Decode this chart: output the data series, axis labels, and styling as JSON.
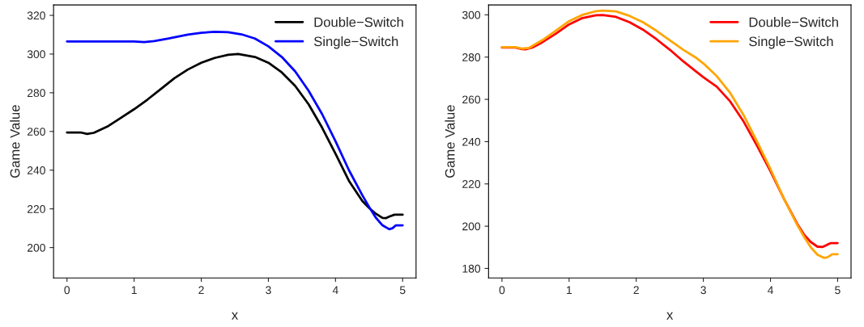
{
  "chart_data": [
    {
      "type": "line",
      "xlabel": "x",
      "ylabel": "Game Value",
      "xlim": [
        -0.2,
        5.2
      ],
      "ylim": [
        184.3,
        325.4
      ],
      "xticks": [
        0,
        1,
        2,
        3,
        4,
        5
      ],
      "yticks": [
        200,
        220,
        240,
        260,
        280,
        300,
        320
      ],
      "legend": "top right",
      "grid": false,
      "series": [
        {
          "name": "Double−Switch",
          "color": "#000000",
          "x": [
            0,
            0.2,
            0.3,
            0.4,
            0.6,
            0.8,
            1.0,
            1.2,
            1.4,
            1.6,
            1.8,
            2.0,
            2.2,
            2.4,
            2.55,
            2.8,
            3.0,
            3.2,
            3.4,
            3.6,
            3.8,
            4.0,
            4.2,
            4.4,
            4.5,
            4.6,
            4.7,
            4.75,
            4.8,
            4.88,
            5
          ],
          "values": [
            259.5,
            259.5,
            258.7,
            259.3,
            262.5,
            267,
            271.5,
            276.5,
            282,
            287.5,
            292,
            295.5,
            298,
            299.6,
            300,
            298.5,
            295.5,
            290.5,
            283.5,
            274,
            262,
            248.5,
            234.5,
            224,
            220.5,
            217.5,
            215.3,
            215.2,
            216,
            217,
            217
          ]
        },
        {
          "name": "Single−Switch",
          "color": "#0000ff",
          "x": [
            0,
            1.0,
            1.15,
            1.3,
            1.5,
            1.8,
            2.0,
            2.2,
            2.4,
            2.6,
            2.8,
            3.0,
            3.2,
            3.4,
            3.6,
            3.8,
            4.0,
            4.2,
            4.4,
            4.5,
            4.6,
            4.7,
            4.8,
            4.85,
            4.9,
            5
          ],
          "values": [
            306.5,
            306.5,
            306.2,
            306.7,
            308,
            310,
            311,
            311.5,
            311.3,
            310.2,
            308,
            304,
            298.5,
            291,
            281,
            269,
            255,
            240,
            227,
            221,
            215.5,
            211.5,
            209.5,
            210,
            211.5,
            211.5
          ]
        }
      ]
    },
    {
      "type": "line",
      "xlabel": "x",
      "ylabel": "Game Value",
      "xlim": [
        -0.2,
        5.2
      ],
      "ylim": [
        175.5,
        304.7
      ],
      "xticks": [
        0,
        1,
        2,
        3,
        4,
        5
      ],
      "yticks": [
        180,
        200,
        220,
        240,
        260,
        280,
        300
      ],
      "legend": "top right",
      "grid": false,
      "series": [
        {
          "name": "Double−Switch",
          "color": "#ff0000",
          "x": [
            0,
            0.2,
            0.3,
            0.35,
            0.45,
            0.6,
            0.8,
            1.0,
            1.2,
            1.4,
            1.5,
            1.7,
            1.9,
            2.1,
            2.3,
            2.5,
            2.7,
            2.9,
            3.0,
            3.2,
            3.4,
            3.6,
            3.8,
            4.0,
            4.2,
            4.4,
            4.5,
            4.6,
            4.7,
            4.78,
            4.85,
            4.9,
            5
          ],
          "values": [
            284.5,
            284.5,
            283.8,
            283.7,
            284.5,
            287,
            291,
            295.5,
            298.5,
            299.8,
            299.9,
            299,
            296.5,
            293,
            288.5,
            283.5,
            278,
            273,
            270.5,
            266,
            259,
            249.5,
            238,
            226,
            213,
            201,
            196,
            192.5,
            190.3,
            190.2,
            191.3,
            192,
            192
          ]
        },
        {
          "name": "Single−Switch",
          "color": "#ffa500",
          "x": [
            0,
            0.2,
            0.3,
            0.4,
            0.6,
            0.8,
            1.0,
            1.2,
            1.4,
            1.5,
            1.7,
            1.9,
            2.1,
            2.3,
            2.5,
            2.7,
            2.9,
            3.0,
            3.2,
            3.4,
            3.6,
            3.8,
            4.0,
            4.2,
            4.4,
            4.5,
            4.6,
            4.7,
            4.8,
            4.85,
            4.92,
            5
          ],
          "values": [
            284.7,
            284.7,
            284,
            284.3,
            288,
            292.5,
            297,
            300,
            301.7,
            302,
            301.6,
            299.5,
            296.5,
            292.5,
            288,
            283.5,
            279.5,
            277,
            271,
            263,
            252.5,
            240,
            227,
            213,
            200.5,
            195,
            190,
            186.5,
            185,
            185.3,
            186.7,
            186.7
          ]
        }
      ]
    }
  ]
}
